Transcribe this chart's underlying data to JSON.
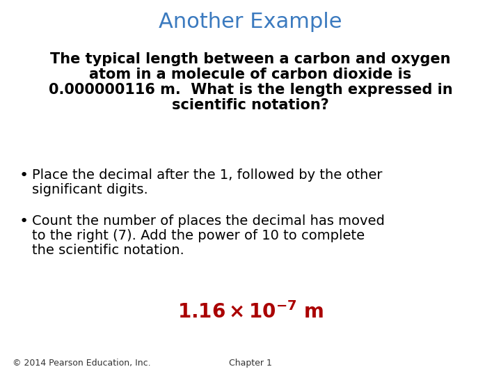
{
  "title": "Another Example",
  "title_color": "#3B7ABF",
  "title_fontsize": 22,
  "body_question_line1": "The typical length between a carbon and oxygen",
  "body_question_line2": "atom in a molecule of carbon dioxide is",
  "body_question_line3": "0.000000116 m.  What is the length expressed in",
  "body_question_line4": "scientific notation?",
  "body_question_fontsize": 15,
  "body_question_color": "#000000",
  "bullet1_line1": "Place the decimal after the 1, followed by the other",
  "bullet1_line2": "significant digits.",
  "bullet2_line1": "Count the number of places the decimal has moved",
  "bullet2_line2": "to the right (7). Add the power of 10 to complete",
  "bullet2_line3": "the scientific notation.",
  "bullet_fontsize": 14,
  "bullet_color": "#000000",
  "answer_color": "#AA0000",
  "answer_fontsize": 20,
  "footer_left": "© 2014 Pearson Education, Inc.",
  "footer_right": "Chapter 1",
  "footer_fontsize": 9,
  "background_color": "#FFFFFF"
}
